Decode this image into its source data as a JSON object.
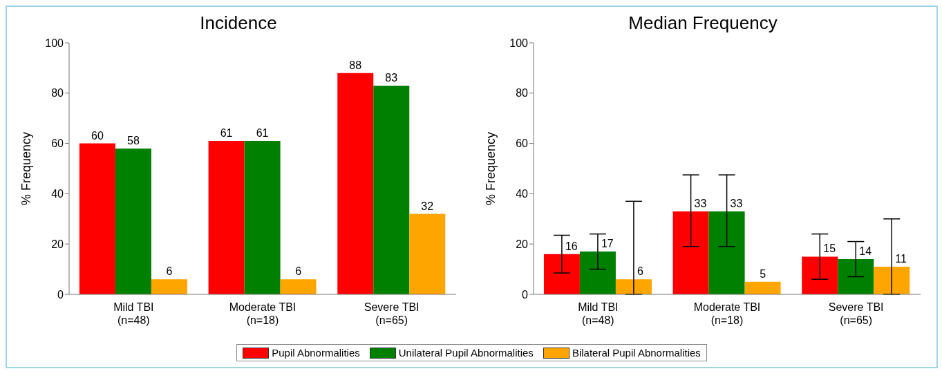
{
  "chart_data": [
    {
      "type": "bar",
      "title": "Incidence",
      "ylabel": "% Frequency",
      "categories": [
        "Mild TBI\n(n=48)",
        "Moderate TBI\n(n=18)",
        "Severe TBI\n(n=65)"
      ],
      "series": [
        {
          "name": "Pupil Abnormalities",
          "color": "#ff0000",
          "values": [
            60,
            61,
            88
          ]
        },
        {
          "name": "Unilateral Pupil Abnormalities",
          "color": "#008000",
          "values": [
            58,
            61,
            83
          ]
        },
        {
          "name": "Bilateral Pupil Abnormalities",
          "color": "#ffa500",
          "values": [
            6,
            6,
            32
          ]
        }
      ],
      "ylim": [
        0,
        100
      ],
      "yticks": [
        0,
        20,
        40,
        60,
        80,
        100
      ],
      "data_labels": true,
      "legend": "bottom",
      "grid": false
    },
    {
      "type": "bar",
      "title": "Median Frequency",
      "ylabel": "% Frequency",
      "categories": [
        "Mild TBI\n(n=48)",
        "Moderate TBI\n(n=18)",
        "Severe TBI\n(n=65)"
      ],
      "series": [
        {
          "color": "#ff0000",
          "values": [
            16,
            33,
            15
          ],
          "errors": [
            [
              8.5,
              23.5
            ],
            [
              19,
              47.5
            ],
            [
              6,
              24
            ]
          ]
        },
        {
          "color": "#008000",
          "values": [
            17,
            33,
            14
          ],
          "errors": [
            [
              10,
              24
            ],
            [
              19,
              47.5
            ],
            [
              7,
              21
            ]
          ]
        },
        {
          "color": "#ffa500",
          "values": [
            6,
            5,
            11
          ],
          "errors": [
            [
              0,
              37
            ],
            null,
            [
              0,
              30
            ]
          ]
        }
      ],
      "ylim": [
        0,
        100
      ],
      "yticks": [
        0,
        20,
        40,
        60,
        80,
        100
      ],
      "data_labels": true,
      "grid": false
    }
  ]
}
